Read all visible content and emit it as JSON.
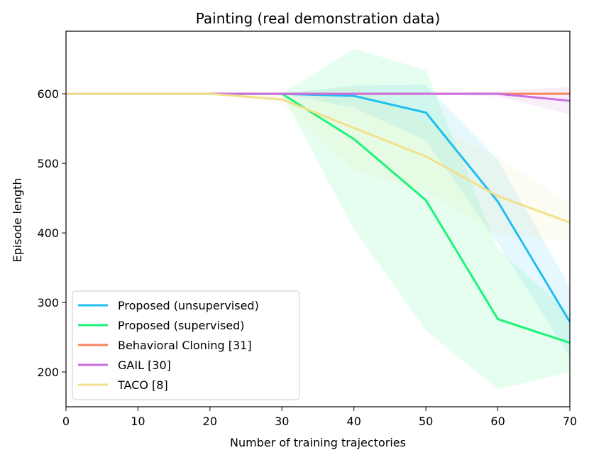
{
  "chart_data": {
    "type": "line",
    "title": "Painting (real demonstration data)",
    "xlabel": "Number of training trajectories",
    "ylabel": "Episode length",
    "xlim": [
      0,
      70
    ],
    "ylim": [
      150,
      690
    ],
    "xticks": [
      0,
      10,
      20,
      30,
      40,
      50,
      60,
      70
    ],
    "yticks": [
      200,
      300,
      400,
      500,
      600
    ],
    "grid": false,
    "legend_position": "lower-left",
    "x": [
      0,
      10,
      20,
      30,
      40,
      50,
      60,
      70
    ],
    "series": [
      {
        "name": "Proposed (unsupervised)",
        "color": "#1ebff0",
        "values": [
          600,
          600,
          600,
          600,
          597,
          573,
          445,
          272
        ],
        "band_lower": [
          600,
          600,
          600,
          600,
          580,
          533,
          385,
          222
        ],
        "band_upper": [
          600,
          600,
          600,
          600,
          612,
          613,
          505,
          322
        ]
      },
      {
        "name": "Proposed (supervised)",
        "color": "#1ef37a",
        "values": [
          600,
          600,
          600,
          600,
          535,
          447,
          276,
          242
        ],
        "band_lower": [
          600,
          600,
          600,
          600,
          405,
          260,
          175,
          200
        ],
        "band_upper": [
          600,
          600,
          600,
          600,
          665,
          634,
          377,
          284
        ]
      },
      {
        "name": "Behavioral Cloning [31]",
        "color": "#f7845b",
        "values": [
          600,
          600,
          600,
          600,
          600,
          600,
          600,
          600
        ]
      },
      {
        "name": "GAIL [30]",
        "color": "#cc6edf",
        "values": [
          600,
          600,
          600,
          600,
          600,
          600,
          600,
          590
        ],
        "band_lower": [
          600,
          600,
          600,
          600,
          600,
          600,
          596,
          570
        ],
        "band_upper": [
          600,
          600,
          600,
          600,
          600,
          600,
          604,
          610
        ]
      },
      {
        "name": "TACO [8]",
        "color": "#f1e08c",
        "values": [
          600,
          600,
          600,
          592,
          551,
          510,
          453,
          415
        ],
        "band_lower": [
          600,
          600,
          600,
          585,
          490,
          460,
          398,
          388
        ],
        "band_upper": [
          600,
          600,
          600,
          599,
          612,
          560,
          508,
          442
        ]
      }
    ]
  }
}
